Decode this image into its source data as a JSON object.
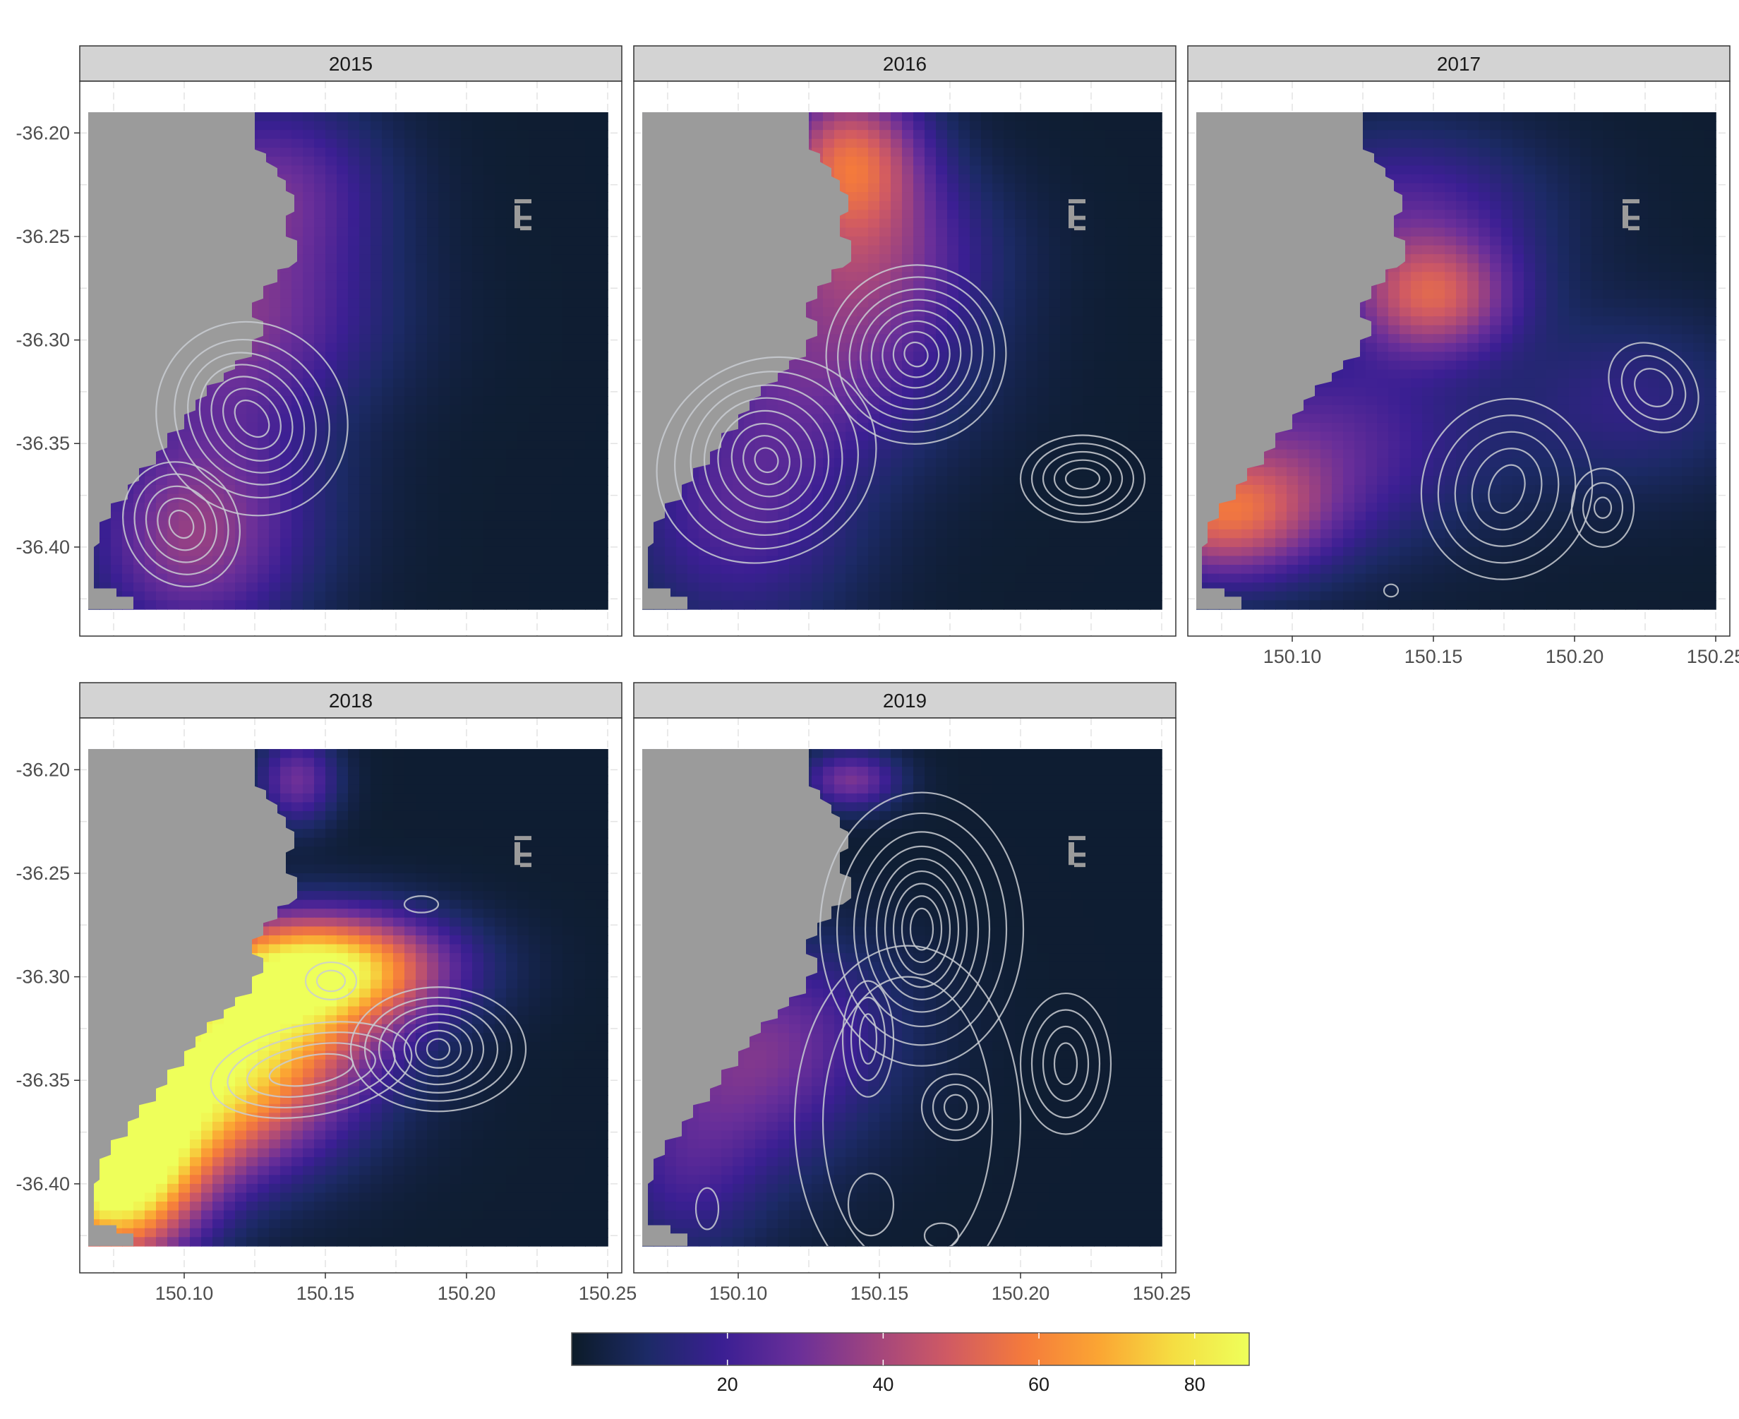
{
  "chart_data": {
    "type": "heatmap",
    "title": "",
    "xlabel": "",
    "ylabel": "",
    "xlim": [
      150.063,
      150.255
    ],
    "ylim": [
      -36.443,
      -36.175
    ],
    "grid": true,
    "panels": [
      {
        "label": "2015",
        "blobs": [
          {
            "lon": 150.13,
            "lat": -36.228,
            "sx": 0.028,
            "sy": 0.032,
            "amp": 28
          },
          {
            "lon": 150.12,
            "lat": -36.292,
            "sx": 0.035,
            "sy": 0.03,
            "amp": 24
          },
          {
            "lon": 150.11,
            "lat": -36.37,
            "sx": 0.03,
            "sy": 0.045,
            "amp": 22
          },
          {
            "lon": 150.1,
            "lat": -36.405,
            "sx": 0.025,
            "sy": 0.03,
            "amp": 18
          }
        ],
        "contours": [
          {
            "lon": 150.124,
            "lat": -36.338,
            "ring_rx": [
              0.005,
              0.009,
              0.013,
              0.017,
              0.021,
              0.026,
              0.033
            ],
            "ring_ry": [
              0.01,
              0.016,
              0.022,
              0.028,
              0.034,
              0.04,
              0.048
            ],
            "rot": -40
          },
          {
            "lon": 150.099,
            "lat": -36.389,
            "ring_rx": [
              0.004,
              0.008,
              0.012,
              0.016,
              0.02
            ],
            "ring_ry": [
              0.007,
              0.013,
              0.019,
              0.025,
              0.031
            ],
            "rot": -30
          }
        ]
      },
      {
        "label": "2016",
        "blobs": [
          {
            "lon": 150.14,
            "lat": -36.21,
            "sx": 0.018,
            "sy": 0.025,
            "amp": 45
          },
          {
            "lon": 150.145,
            "lat": -36.255,
            "sx": 0.03,
            "sy": 0.03,
            "amp": 28
          },
          {
            "lon": 150.13,
            "lat": -36.31,
            "sx": 0.035,
            "sy": 0.035,
            "amp": 24
          },
          {
            "lon": 150.1,
            "lat": -36.385,
            "sx": 0.03,
            "sy": 0.04,
            "amp": 22
          }
        ],
        "contours": [
          {
            "lon": 150.163,
            "lat": -36.307,
            "ring_rx": [
              0.004,
              0.008,
              0.012,
              0.016,
              0.02,
              0.024,
              0.028,
              0.032
            ],
            "ring_ry": [
              0.006,
              0.011,
              0.016,
              0.021,
              0.026,
              0.031,
              0.037,
              0.043
            ],
            "rot": -35
          },
          {
            "lon": 150.11,
            "lat": -36.358,
            "ring_rx": [
              0.004,
              0.008,
              0.012,
              0.017,
              0.022,
              0.027,
              0.033,
              0.04
            ],
            "ring_ry": [
              0.006,
              0.012,
              0.018,
              0.024,
              0.03,
              0.036,
              0.042,
              0.048
            ],
            "rot": -30
          },
          {
            "lon": 150.222,
            "lat": -36.367,
            "ring_rx": [
              0.006,
              0.01,
              0.014,
              0.018,
              0.022
            ],
            "ring_ry": [
              0.005,
              0.009,
              0.013,
              0.017,
              0.021
            ],
            "rot": 0
          }
        ]
      },
      {
        "label": "2017",
        "blobs": [
          {
            "lon": 150.15,
            "lat": -36.28,
            "sx": 0.02,
            "sy": 0.02,
            "amp": 40
          },
          {
            "lon": 150.14,
            "lat": -36.24,
            "sx": 0.035,
            "sy": 0.03,
            "amp": 22
          },
          {
            "lon": 150.075,
            "lat": -36.385,
            "sx": 0.025,
            "sy": 0.022,
            "amp": 45
          },
          {
            "lon": 150.11,
            "lat": -36.35,
            "sx": 0.04,
            "sy": 0.035,
            "amp": 24
          },
          {
            "lon": 150.22,
            "lat": -36.33,
            "sx": 0.03,
            "sy": 0.03,
            "amp": 14
          }
        ],
        "contours": [
          {
            "lon": 150.176,
            "lat": -36.372,
            "ring_rx": [
              0.006,
              0.012,
              0.018,
              0.024,
              0.03
            ],
            "ring_ry": [
              0.012,
              0.02,
              0.028,
              0.036,
              0.044
            ],
            "rot": 20
          },
          {
            "lon": 150.228,
            "lat": -36.323,
            "ring_rx": [
              0.006,
              0.01,
              0.014
            ],
            "ring_ry": [
              0.01,
              0.017,
              0.024
            ],
            "rot": -45
          },
          {
            "lon": 150.21,
            "lat": -36.381,
            "ring_rx": [
              0.003,
              0.007,
              0.011
            ],
            "ring_ry": [
              0.005,
              0.012,
              0.019
            ],
            "rot": 0
          },
          {
            "lon": 150.135,
            "lat": -36.421,
            "ring_rx": [
              0.0025
            ],
            "ring_ry": [
              0.003
            ],
            "rot": 0
          }
        ]
      },
      {
        "label": "2018",
        "blobs": [
          {
            "lon": 150.15,
            "lat": -36.295,
            "sx": 0.03,
            "sy": 0.018,
            "amp": 70
          },
          {
            "lon": 150.075,
            "lat": -36.395,
            "sx": 0.02,
            "sy": 0.03,
            "amp": 90
          },
          {
            "lon": 150.1,
            "lat": -36.355,
            "sx": 0.035,
            "sy": 0.03,
            "amp": 70
          },
          {
            "lon": 150.13,
            "lat": -36.32,
            "sx": 0.03,
            "sy": 0.025,
            "amp": 45
          },
          {
            "lon": 150.14,
            "lat": -36.205,
            "sx": 0.01,
            "sy": 0.015,
            "amp": 28
          }
        ],
        "contours": [
          {
            "lon": 150.19,
            "lat": -36.335,
            "ring_rx": [
              0.004,
              0.008,
              0.012,
              0.016,
              0.021,
              0.026,
              0.031
            ],
            "ring_ry": [
              0.005,
              0.009,
              0.013,
              0.017,
              0.021,
              0.025,
              0.03
            ],
            "rot": 0
          },
          {
            "lon": 150.145,
            "lat": -36.345,
            "ring_rx": [
              0.015,
              0.023,
              0.03,
              0.036
            ],
            "ring_ry": [
              0.007,
              0.012,
              0.017,
              0.022
            ],
            "rot": -10
          },
          {
            "lon": 150.152,
            "lat": -36.302,
            "ring_rx": [
              0.005,
              0.009
            ],
            "ring_ry": [
              0.005,
              0.009
            ],
            "rot": 0
          },
          {
            "lon": 150.184,
            "lat": -36.265,
            "ring_rx": [
              0.006
            ],
            "ring_ry": [
              0.004
            ],
            "rot": 0
          }
        ]
      },
      {
        "label": "2019",
        "blobs": [
          {
            "lon": 150.14,
            "lat": -36.205,
            "sx": 0.012,
            "sy": 0.01,
            "amp": 30
          },
          {
            "lon": 150.1,
            "lat": -36.35,
            "sx": 0.03,
            "sy": 0.035,
            "amp": 22
          },
          {
            "lon": 150.12,
            "lat": -36.32,
            "sx": 0.03,
            "sy": 0.03,
            "amp": 14
          },
          {
            "lon": 150.08,
            "lat": -36.4,
            "sx": 0.02,
            "sy": 0.03,
            "amp": 14
          }
        ],
        "contours": [
          {
            "lon": 150.165,
            "lat": -36.277,
            "ring_rx": [
              0.004,
              0.007,
              0.01,
              0.013,
              0.016,
              0.02,
              0.024,
              0.03,
              0.036
            ],
            "ring_ry": [
              0.01,
              0.016,
              0.022,
              0.028,
              0.034,
              0.04,
              0.047,
              0.056,
              0.066
            ],
            "rot": 0
          },
          {
            "lon": 150.146,
            "lat": -36.33,
            "ring_rx": [
              0.003,
              0.006,
              0.009
            ],
            "ring_ry": [
              0.012,
              0.02,
              0.028
            ],
            "rot": 0
          },
          {
            "lon": 150.177,
            "lat": -36.363,
            "ring_rx": [
              0.004,
              0.008,
              0.012
            ],
            "ring_ry": [
              0.006,
              0.011,
              0.016
            ],
            "rot": 0
          },
          {
            "lon": 150.216,
            "lat": -36.342,
            "ring_rx": [
              0.004,
              0.008,
              0.012,
              0.016
            ],
            "ring_ry": [
              0.01,
              0.018,
              0.026,
              0.034
            ],
            "rot": 0
          },
          {
            "lon": 150.16,
            "lat": -36.37,
            "ring_rx": [
              0.03,
              0.04
            ],
            "ring_ry": [
              0.07,
              0.085
            ],
            "rot": 0
          },
          {
            "lon": 150.089,
            "lat": -36.412,
            "ring_rx": [
              0.004
            ],
            "ring_ry": [
              0.01
            ],
            "rot": 0
          },
          {
            "lon": 150.147,
            "lat": -36.41,
            "ring_rx": [
              0.008
            ],
            "ring_ry": [
              0.015
            ],
            "rot": 0
          },
          {
            "lon": 150.172,
            "lat": -36.425,
            "ring_rx": [
              0.006
            ],
            "ring_ry": [
              0.006
            ],
            "rot": 0
          }
        ]
      }
    ],
    "x_ticks": [
      "150.10",
      "150.15",
      "150.20",
      "150.25"
    ],
    "x_tick_values": [
      150.1,
      150.15,
      150.2,
      150.25
    ],
    "y_ticks": [
      "-36.20",
      "-36.25",
      "-36.30",
      "-36.35",
      "-36.40"
    ],
    "y_tick_values": [
      -36.2,
      -36.25,
      -36.3,
      -36.35,
      -36.4
    ],
    "legend": {
      "position": "bottom",
      "min": 0,
      "max": 87,
      "tick_labels": [
        "20",
        "40",
        "60",
        "80"
      ],
      "tick_values": [
        20,
        40,
        60,
        80
      ]
    },
    "colors": {
      "background": "#0c1b28",
      "land": "#9b9b9b",
      "contour": "#c9cdd2",
      "strip_fill": "#d3d3d3",
      "scale": [
        "#0c1b28",
        "#1c2a66",
        "#3b1f93",
        "#6a2f99",
        "#a0447f",
        "#d05a63",
        "#f47a3c",
        "#fba533",
        "#f5de42",
        "#eeff5a"
      ]
    }
  }
}
